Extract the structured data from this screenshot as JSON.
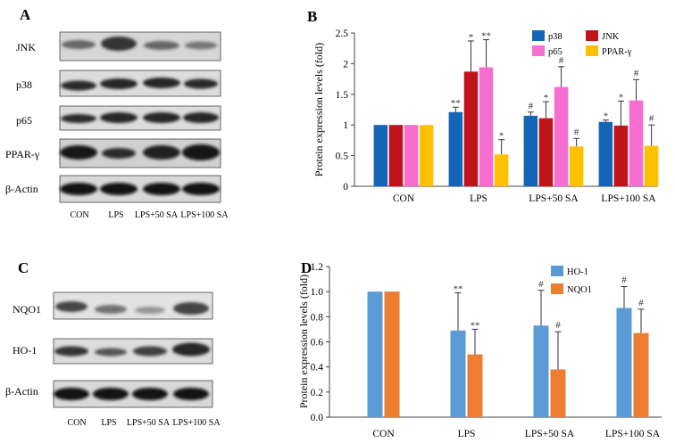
{
  "panels": {
    "A": {
      "label": "A",
      "blot_rows": [
        "JNK",
        "p38",
        "p65",
        "PPAR-γ",
        "β-Actin"
      ],
      "lanes": [
        "CON",
        "LPS",
        "LPS+50 SA",
        "LPS+100 SA"
      ]
    },
    "C": {
      "label": "C",
      "blot_rows": [
        "NQO1",
        "HO-1",
        "β-Actin"
      ],
      "lanes": [
        "CON",
        "LPS",
        "LPS+50 SA",
        "LPS+100 SA"
      ]
    }
  },
  "chart_data": [
    {
      "panel": "B",
      "type": "bar",
      "categories": [
        "CON",
        "LPS",
        "LPS+50 SA",
        "LPS+100 SA"
      ],
      "ylabel": "Protein expression levels (fold)",
      "ylim": [
        0,
        2.5
      ],
      "yticks": [
        "0",
        "0.5",
        "1",
        "1.5",
        "2",
        "2.5"
      ],
      "legend_position": "top-right",
      "series": [
        {
          "name": "p38",
          "color": "#1565b7",
          "values": [
            1.0,
            1.21,
            1.15,
            1.05
          ],
          "errors": [
            0,
            0.08,
            0.06,
            0.03
          ],
          "marks": [
            "",
            "**",
            "#",
            "*"
          ]
        },
        {
          "name": "JNK",
          "color": "#c0141b",
          "values": [
            1.0,
            1.87,
            1.11,
            0.99
          ],
          "errors": [
            0,
            0.5,
            0.27,
            0.4
          ],
          "marks": [
            "",
            "*",
            "*",
            "*"
          ]
        },
        {
          "name": "p65",
          "color": "#f56ed0",
          "values": [
            1.0,
            1.94,
            1.62,
            1.4
          ],
          "errors": [
            0,
            0.45,
            0.33,
            0.34
          ],
          "marks": [
            "",
            "**",
            "#",
            "#"
          ]
        },
        {
          "name": "PPAR-γ",
          "color": "#ffc000",
          "values": [
            1.0,
            0.52,
            0.65,
            0.66
          ],
          "errors": [
            0,
            0.24,
            0.13,
            0.34
          ],
          "marks": [
            "",
            "*",
            "#",
            "#"
          ]
        }
      ]
    },
    {
      "panel": "D",
      "type": "bar",
      "categories": [
        "CON",
        "LPS",
        "LPS+50 SA",
        "LPS+100 SA"
      ],
      "ylabel": "Protein expression levels (fold)",
      "ylim": [
        0,
        1.2
      ],
      "yticks": [
        "0.0",
        "0.2",
        "0.4",
        "0.6",
        "0.8",
        "1.0",
        "1.2"
      ],
      "legend_position": "top-right",
      "series": [
        {
          "name": "HO-1",
          "color": "#5b9bd5",
          "values": [
            1.0,
            0.69,
            0.73,
            0.87
          ],
          "errors": [
            0,
            0.3,
            0.28,
            0.17
          ],
          "marks": [
            "",
            "**",
            "#",
            "#"
          ]
        },
        {
          "name": "NQO1",
          "color": "#ed7d31",
          "values": [
            1.0,
            0.5,
            0.38,
            0.67
          ],
          "errors": [
            0,
            0.2,
            0.3,
            0.19
          ],
          "marks": [
            "",
            "**",
            "#",
            "#"
          ]
        }
      ]
    }
  ]
}
